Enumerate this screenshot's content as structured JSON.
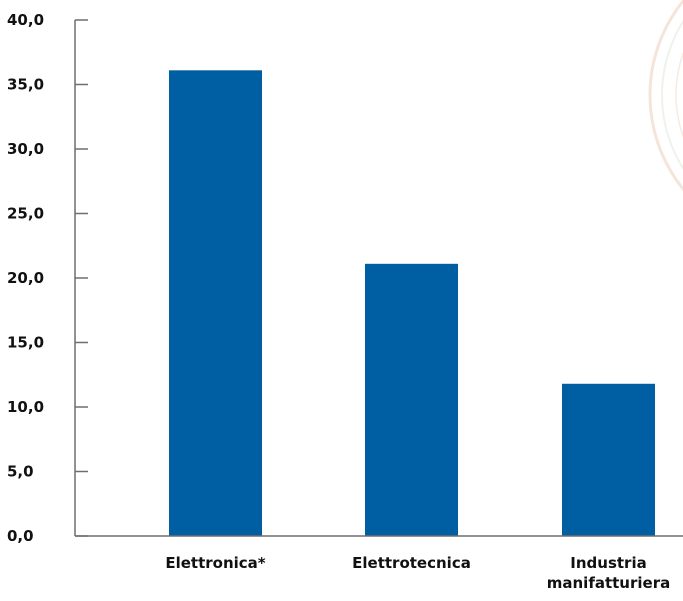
{
  "chart_data": {
    "type": "bar",
    "categories": [
      [
        "Elettronica*"
      ],
      [
        "Elettrotecnica"
      ],
      [
        "Industria",
        "manifatturiera"
      ]
    ],
    "values": [
      36.1,
      21.1,
      11.8
    ],
    "ylim": [
      0,
      40
    ],
    "yticks": [
      "0,0",
      "5,0",
      "10,0",
      "15,0",
      "20,0",
      "25,0",
      "30,0",
      "35,0",
      "40,0"
    ],
    "grid": false,
    "bar_color": "#005ea2"
  },
  "decoration": {
    "watermark": "partial-seal-watermark"
  }
}
